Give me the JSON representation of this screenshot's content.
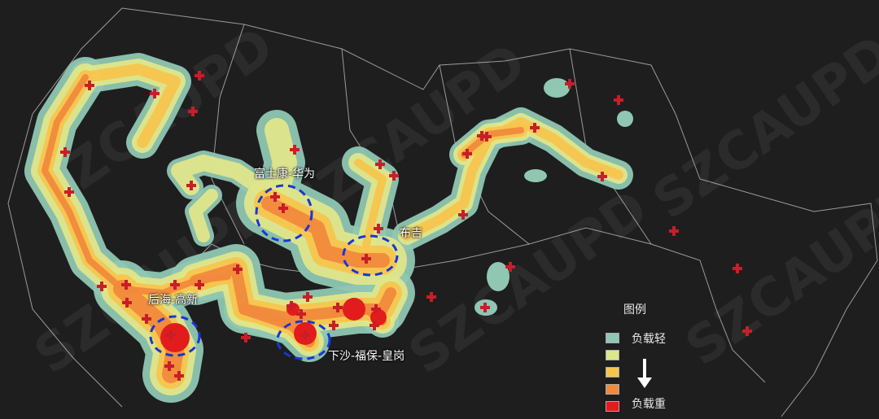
{
  "labels": {
    "foxconn": "富士康-华为",
    "buji": "布吉",
    "houhai": "后海-高新",
    "xiasha": "下沙-福保-皇岗"
  },
  "watermark": "SZCAUPD",
  "legend": {
    "title": "图例",
    "light_label": "负载轻",
    "heavy_label": "负载重",
    "colors": [
      "#8fc7b3",
      "#dfe68a",
      "#f7c54e",
      "#f08a3c",
      "#e21c1c"
    ]
  },
  "colors": {
    "background": "#1e1e1f",
    "marker": "#c81e28",
    "highlight_circle": "#1a35d6",
    "boundary": "#cfcfcf"
  }
}
